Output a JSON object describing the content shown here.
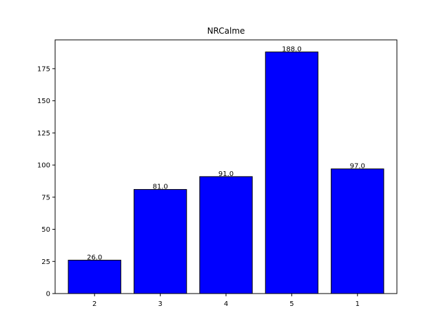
{
  "chart_data": {
    "type": "bar",
    "title": "NRCalme",
    "xlabel": "",
    "ylabel": "",
    "categories": [
      "2",
      "3",
      "4",
      "5",
      "1"
    ],
    "values": [
      26.0,
      81.0,
      91.0,
      188.0,
      97.0
    ],
    "data_labels": [
      "26.0",
      "81.0",
      "91.0",
      "188.0",
      "97.0"
    ],
    "ylim": [
      0,
      197.4
    ],
    "yticks": [
      0,
      25,
      50,
      75,
      100,
      125,
      150,
      175
    ],
    "grid": false,
    "legend": "none",
    "bar_color": "#0000ff",
    "bar_edge_color": "#000000"
  }
}
